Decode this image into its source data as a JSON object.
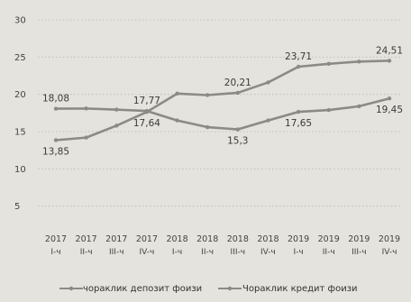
{
  "chart_data": {
    "type": "line",
    "title": "",
    "xlabel": "",
    "ylabel": "",
    "ylim": [
      0,
      30
    ],
    "yticks": [
      5,
      10,
      15,
      20,
      25,
      30
    ],
    "grid": true,
    "legend_position": "bottom",
    "categories": [
      {
        "year": "2017",
        "q": "I-ч"
      },
      {
        "year": "2017",
        "q": "II-ч"
      },
      {
        "year": "2017",
        "q": "III-ч"
      },
      {
        "year": "2017",
        "q": "IV-ч"
      },
      {
        "year": "2018",
        "q": "I-ч"
      },
      {
        "year": "2018",
        "q": "II-ч"
      },
      {
        "year": "2018",
        "q": "III-ч"
      },
      {
        "year": "2018",
        "q": "IV-ч"
      },
      {
        "year": "2019",
        "q": "I-ч"
      },
      {
        "year": "2019",
        "q": "II-ч"
      },
      {
        "year": "2019",
        "q": "III-ч"
      },
      {
        "year": "2019",
        "q": "IV-ч"
      }
    ],
    "series": [
      {
        "name": "чораклик депозит фоизи",
        "values": [
          13.85,
          14.2,
          15.8,
          17.64,
          20.1,
          19.9,
          20.21,
          21.6,
          23.71,
          24.1,
          24.4,
          24.51
        ]
      },
      {
        "name": "Чораклик кредит фоизи",
        "values": [
          18.08,
          18.1,
          17.95,
          17.77,
          16.5,
          15.6,
          15.3,
          16.5,
          17.65,
          17.9,
          18.4,
          19.45
        ]
      }
    ],
    "data_labels": [
      {
        "series": 1,
        "index": 0,
        "text": "18,08",
        "pos": "above"
      },
      {
        "series": 0,
        "index": 0,
        "text": "13,85",
        "pos": "below"
      },
      {
        "series": 1,
        "index": 3,
        "text": "17,77",
        "pos": "above"
      },
      {
        "series": 0,
        "index": 3,
        "text": "17,64",
        "pos": "below"
      },
      {
        "series": 0,
        "index": 6,
        "text": "20,21",
        "pos": "above"
      },
      {
        "series": 1,
        "index": 6,
        "text": "15,3",
        "pos": "below"
      },
      {
        "series": 0,
        "index": 8,
        "text": "23,71",
        "pos": "above"
      },
      {
        "series": 1,
        "index": 8,
        "text": "17,65",
        "pos": "below"
      },
      {
        "series": 0,
        "index": 11,
        "text": "24,51",
        "pos": "above"
      },
      {
        "series": 1,
        "index": 11,
        "text": "19,45",
        "pos": "below"
      }
    ]
  }
}
